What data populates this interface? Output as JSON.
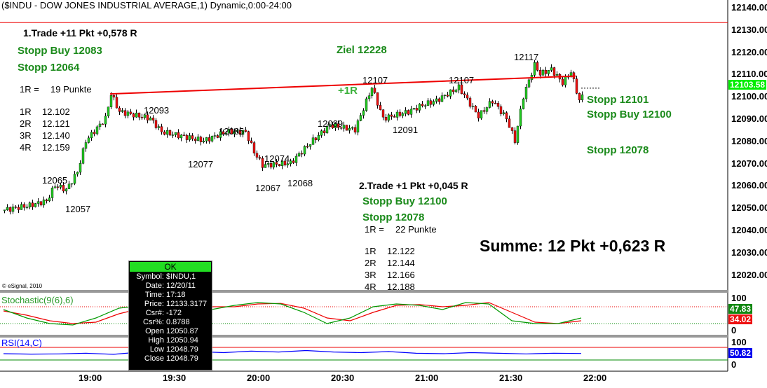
{
  "header": {
    "title": "($INDU - DOW JONES INDUSTRIAL AVERAGE,1) Dynamic,0:00-24:00"
  },
  "trade1": {
    "title": "1.Trade +11 Pkt +0,578 R",
    "stop_buy": "Stopp Buy 12083",
    "stop": "Stopp 12064",
    "r_label": "1R =",
    "r_value": "19 Punkte",
    "levels": [
      [
        "1R",
        "12.102"
      ],
      [
        "2R",
        "12.121"
      ],
      [
        "3R",
        "12.140"
      ],
      [
        "4R",
        "12.159"
      ]
    ]
  },
  "trade2": {
    "title": "2.Trade +1 Pkt +0,045 R",
    "stop_buy": "Stopp Buy 12100",
    "stop": "Stopp 12078",
    "r_label": "1R =",
    "r_value": "22 Punkte",
    "levels": [
      [
        "1R",
        "12.122"
      ],
      [
        "2R",
        "12.144"
      ],
      [
        "3R",
        "12.166"
      ],
      [
        "4R",
        "12.188"
      ]
    ]
  },
  "annotations": {
    "ziel": "Ziel 12228",
    "plus1r": "+1R",
    "right_stop1": "Stopp 12101",
    "right_stop_buy": "Stopp Buy 12100",
    "right_stop2": "Stopp 12078",
    "summe": "Summe: 12 Pkt +0,623 R",
    "copyright": "© eSignal, 2010"
  },
  "price_labels": [
    [
      "12065",
      60,
      250
    ],
    [
      "12057",
      93,
      291
    ],
    [
      "12093",
      205,
      150
    ],
    [
      "12077",
      268,
      227
    ],
    [
      "12085",
      312,
      180
    ],
    [
      "12074",
      377,
      219
    ],
    [
      "12067",
      364,
      261
    ],
    [
      "12068",
      410,
      254
    ],
    [
      "12089",
      453,
      169
    ],
    [
      "12107",
      517,
      107
    ],
    [
      "12091",
      560,
      178
    ],
    [
      "12107",
      640,
      107
    ],
    [
      "12117",
      733,
      74
    ]
  ],
  "tooltip": {
    "header": "OK",
    "rows": [
      [
        "Symbol:",
        "$INDU,1"
      ],
      [
        "Date:",
        "12/20/11"
      ],
      [
        "Time:",
        "17:18"
      ],
      [
        "Price:",
        "12133.3177"
      ],
      [
        "Csr#:",
        "-172"
      ],
      [
        "Csr%:",
        "0.8788"
      ],
      [
        "Open",
        "12050.87"
      ],
      [
        "High",
        "12050.94"
      ],
      [
        "Low",
        "12048.79"
      ],
      [
        "Close",
        "12048.79"
      ]
    ]
  },
  "indicators": {
    "stoch_label": "Stochastic(9(6),6)",
    "stoch_k": "47.83",
    "stoch_d": "34.02",
    "rsi_label": "RSI(14,C)",
    "rsi_value": "50.82",
    "ticks": [
      "100",
      "0"
    ]
  },
  "colors": {
    "up": "#22cc22",
    "down": "#ee1111",
    "last": "#00ee00",
    "rsi": "#0000ff"
  },
  "chart_data": {
    "type": "candlestick",
    "last_price": "12103.58",
    "y_ticks": [
      "12140.00",
      "12130.00",
      "12120.00",
      "12110.00",
      "12100.00",
      "12090.00",
      "12080.00",
      "12070.00",
      "12060.00",
      "12050.00",
      "12040.00",
      "12030.00",
      "12020.00"
    ],
    "ylim": [
      12020,
      12140
    ],
    "x_ticks": [
      "19:00",
      "19:30",
      "20:00",
      "20:30",
      "21:00",
      "21:30",
      "22:00"
    ],
    "path_minutes_price": [
      [
        0,
        12049
      ],
      [
        9,
        12051
      ],
      [
        15,
        12053
      ],
      [
        18,
        12060
      ],
      [
        22,
        12058
      ],
      [
        26,
        12066
      ],
      [
        29,
        12080
      ],
      [
        36,
        12090
      ],
      [
        38,
        12101
      ],
      [
        41,
        12093
      ],
      [
        52,
        12090
      ],
      [
        56,
        12084
      ],
      [
        71,
        12080
      ],
      [
        79,
        12084
      ],
      [
        86,
        12084
      ],
      [
        89,
        12075
      ],
      [
        92,
        12069
      ],
      [
        102,
        12070
      ],
      [
        109,
        12079
      ],
      [
        116,
        12087
      ],
      [
        125,
        12085
      ],
      [
        131,
        12104
      ],
      [
        135,
        12090
      ],
      [
        144,
        12093
      ],
      [
        149,
        12096
      ],
      [
        154,
        12098
      ],
      [
        162,
        12104
      ],
      [
        169,
        12091
      ],
      [
        174,
        12098
      ],
      [
        179,
        12090
      ],
      [
        182,
        12080
      ],
      [
        185,
        12100
      ],
      [
        189,
        12114
      ],
      [
        191,
        12110
      ],
      [
        195,
        12112
      ],
      [
        199,
        12106
      ],
      [
        202,
        12111
      ],
      [
        205,
        12098
      ],
      [
        206,
        12100
      ]
    ],
    "trendline": [
      [
        12101,
        38
      ],
      [
        12109,
        204
      ]
    ],
    "horizontal_line": 12133,
    "stochastic_k": [
      70,
      40,
      20,
      15,
      40,
      75,
      85,
      80,
      90,
      70,
      85,
      95,
      90,
      60,
      20,
      40,
      80,
      90,
      85,
      70,
      95,
      90,
      30,
      20,
      20,
      40
    ],
    "stochastic_d": [
      65,
      50,
      30,
      20,
      25,
      55,
      75,
      82,
      85,
      80,
      80,
      90,
      92,
      75,
      40,
      30,
      60,
      85,
      88,
      80,
      85,
      95,
      60,
      25,
      20,
      30
    ],
    "rsi": [
      50,
      48,
      49,
      52,
      47,
      58,
      52,
      60,
      55,
      62,
      58,
      65,
      58,
      55,
      60,
      52,
      50,
      55,
      52,
      49,
      52,
      51
    ]
  }
}
